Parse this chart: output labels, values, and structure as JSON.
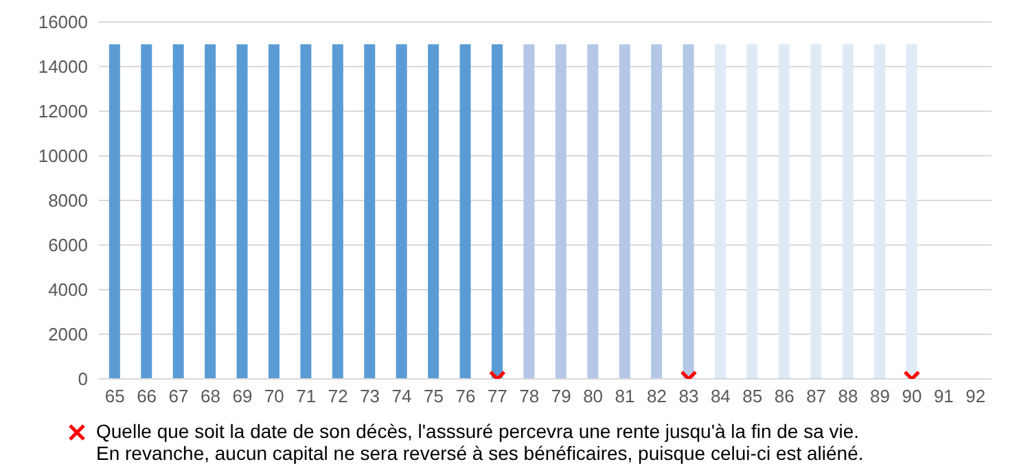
{
  "chart_data": {
    "type": "bar",
    "categories": [
      "65",
      "66",
      "67",
      "68",
      "69",
      "70",
      "71",
      "72",
      "73",
      "74",
      "75",
      "76",
      "77",
      "78",
      "79",
      "80",
      "81",
      "82",
      "83",
      "84",
      "85",
      "86",
      "87",
      "88",
      "89",
      "90",
      "91",
      "92"
    ],
    "series": [
      {
        "values": [
          15000,
          15000,
          15000,
          15000,
          15000,
          15000,
          15000,
          15000,
          15000,
          15000,
          15000,
          15000,
          15000,
          15000,
          15000,
          15000,
          15000,
          15000,
          15000,
          15000,
          15000,
          15000,
          15000,
          15000,
          15000,
          15000,
          null,
          null
        ],
        "colors": [
          "#5b9bd5",
          "#5b9bd5",
          "#5b9bd5",
          "#5b9bd5",
          "#5b9bd5",
          "#5b9bd5",
          "#5b9bd5",
          "#5b9bd5",
          "#5b9bd5",
          "#5b9bd5",
          "#5b9bd5",
          "#5b9bd5",
          "#5b9bd5",
          "#b4c7e7",
          "#b4c7e7",
          "#b4c7e7",
          "#b4c7e7",
          "#b4c7e7",
          "#b4c7e7",
          "#deebf7",
          "#deebf7",
          "#deebf7",
          "#deebf7",
          "#deebf7",
          "#deebf7",
          "#deebf7",
          "#deebf7",
          "#deebf7"
        ]
      },
      {
        "type": "scatter",
        "name": "Quelle que soit la date de son décès, l'asssuré percevra une rente jusqu'à la fin de sa vie.\nEn revanche, aucun capital ne sera reversé à ses bénéficaires, puisque celui-ci est aliéné.",
        "color": "#ff0000",
        "marker": "cross",
        "x": [
          "77",
          "83",
          "90"
        ],
        "values": [
          0,
          0,
          0
        ]
      }
    ],
    "ylim": [
      0,
      16000
    ],
    "yticks": [
      0,
      2000,
      4000,
      6000,
      8000,
      10000,
      12000,
      14000,
      16000
    ],
    "grid": "y",
    "legend": "bottom"
  }
}
